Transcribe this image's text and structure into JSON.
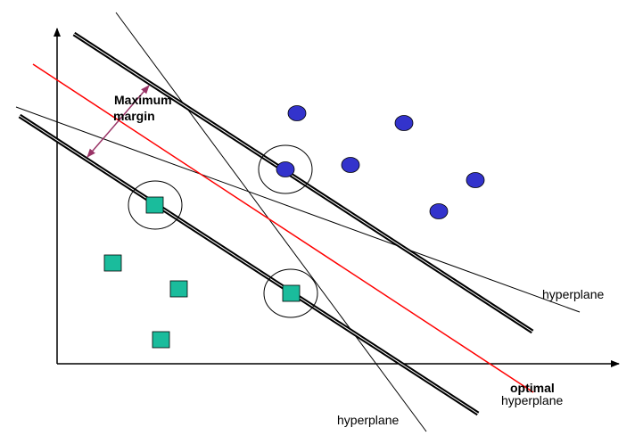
{
  "labels": {
    "max_margin_line1": "Maximum",
    "max_margin_line2": "margin",
    "hyperplane_right": "hyperplane",
    "hyperplane_bottom": "hyperplane",
    "optimal_line1": "optimal",
    "optimal_line2": "hyperplane"
  },
  "colors": {
    "circle_class": "#3333cc",
    "square_class": "#1abc9c",
    "optimal_line": "#ff0000",
    "margin_arrow": "#993366",
    "axis": "#000000"
  }
}
